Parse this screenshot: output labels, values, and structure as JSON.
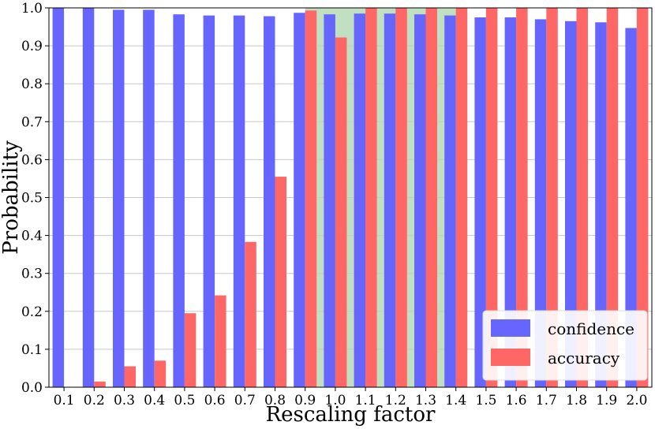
{
  "chart_data": {
    "type": "bar",
    "title": "",
    "xlabel": "Rescaling factor",
    "ylabel": "Probability",
    "ylim": [
      0,
      1.0
    ],
    "yticks": [
      "0.0",
      "0.1",
      "0.2",
      "0.3",
      "0.4",
      "0.5",
      "0.6",
      "0.7",
      "0.8",
      "0.9",
      "1.0"
    ],
    "grid": true,
    "legend_position": "bottom-right",
    "categories": [
      "0.1",
      "0.2",
      "0.3",
      "0.4",
      "0.5",
      "0.6",
      "0.7",
      "0.8",
      "0.9",
      "1.0",
      "1.1",
      "1.2",
      "1.3",
      "1.4",
      "1.5",
      "1.6",
      "1.7",
      "1.8",
      "1.9",
      "2.0"
    ],
    "highlighted_range": [
      "0.9",
      "1.4"
    ],
    "series": [
      {
        "name": "confidence",
        "color": "#6666ff",
        "values": [
          1.0,
          1.0,
          0.995,
          0.995,
          0.983,
          0.98,
          0.98,
          0.978,
          0.987,
          0.983,
          0.985,
          0.985,
          0.983,
          0.98,
          0.975,
          0.975,
          0.97,
          0.965,
          0.962,
          0.947
        ]
      },
      {
        "name": "accuracy",
        "color": "#ff6666",
        "values": [
          0.0,
          0.015,
          0.055,
          0.07,
          0.195,
          0.242,
          0.383,
          0.555,
          0.993,
          0.922,
          1.0,
          1.0,
          1.0,
          1.0,
          1.0,
          1.0,
          1.0,
          1.0,
          1.0,
          1.0
        ]
      }
    ],
    "highlight_color": "#c1dfc1"
  }
}
